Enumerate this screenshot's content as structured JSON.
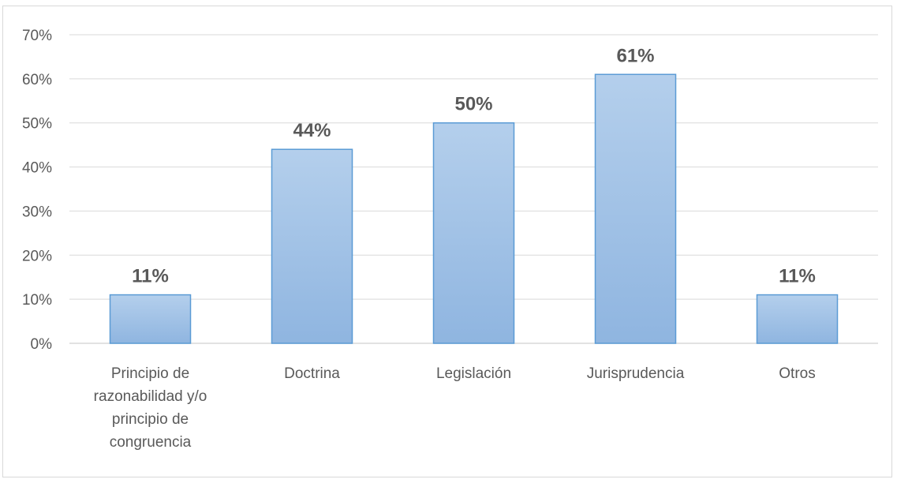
{
  "chart_data": {
    "type": "bar",
    "categories": [
      "Principio de razonabilidad y/o principio de congruencia",
      "Doctrina",
      "Legislación",
      "Jurisprudencia",
      "Otros"
    ],
    "category_label_lines": [
      [
        "Principio de",
        "razonabilidad y/o",
        "principio de",
        "congruencia"
      ],
      [
        "Doctrina"
      ],
      [
        "Legislación"
      ],
      [
        "Jurisprudencia"
      ],
      [
        "Otros"
      ]
    ],
    "values": [
      11,
      44,
      50,
      61,
      11
    ],
    "data_labels": [
      "11%",
      "44%",
      "50%",
      "61%",
      "11%"
    ],
    "yticks": [
      0,
      10,
      20,
      30,
      40,
      50,
      60,
      70
    ],
    "ytick_labels": [
      "0%",
      "10%",
      "20%",
      "30%",
      "40%",
      "50%",
      "60%",
      "70%"
    ],
    "ylim": [
      0,
      70
    ],
    "title": "",
    "xlabel": "",
    "ylabel": "",
    "grid": true,
    "legend": "none",
    "colors": {
      "bar_fill_top": "#b4cfec",
      "bar_fill_bottom": "#8fb5e0",
      "bar_stroke": "#5b9bd5",
      "gridline": "#d9d9d9",
      "text": "#595959"
    }
  }
}
